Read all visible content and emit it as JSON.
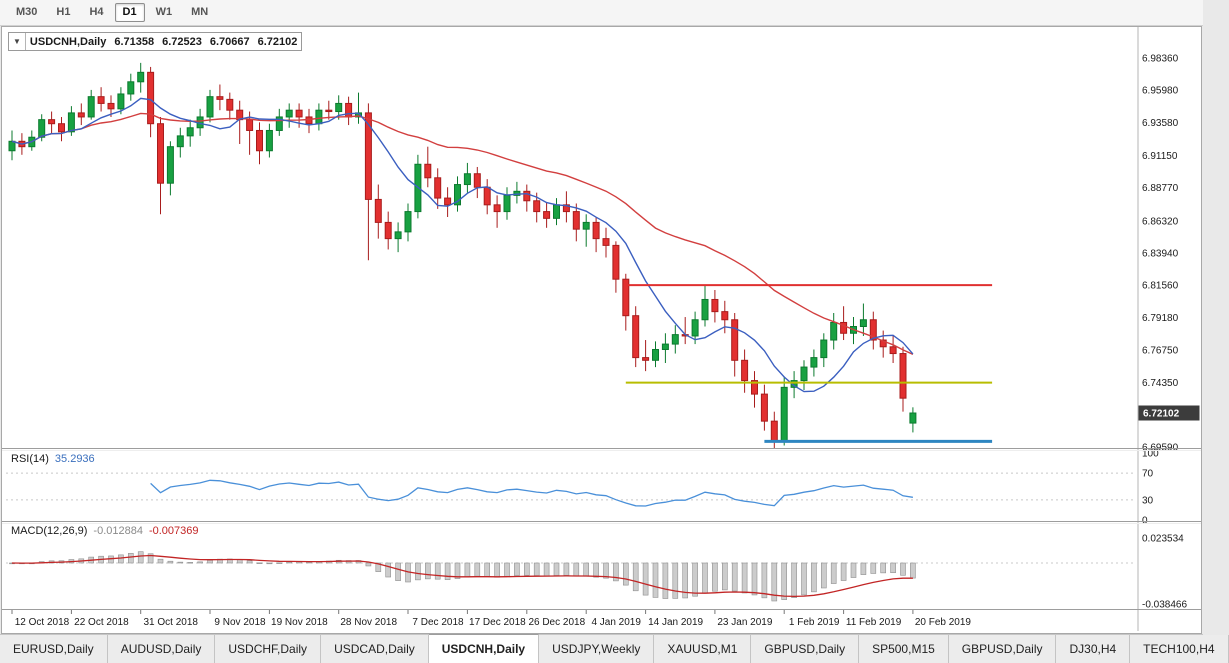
{
  "toolbar": {
    "timeframes": [
      {
        "label": "M30",
        "active": false
      },
      {
        "label": "H1",
        "active": false
      },
      {
        "label": "H4",
        "active": false
      },
      {
        "label": "D1",
        "active": true
      },
      {
        "label": "W1",
        "active": false
      },
      {
        "label": "MN",
        "active": false
      }
    ]
  },
  "chart": {
    "title": {
      "symbol": "USDCNH,Daily",
      "open": "6.71358",
      "high": "6.72523",
      "low": "6.70667",
      "close": "6.72102"
    },
    "current_price": "6.72102"
  },
  "chart_data": {
    "type": "candlestick",
    "title": "USDCNH,Daily",
    "symbol": "USDCNH",
    "timeframe": "Daily",
    "ylim": [
      6.685,
      6.998
    ],
    "y_axis_labels": [
      "6.98360",
      "6.95980",
      "6.93580",
      "6.91150",
      "6.88770",
      "6.86320",
      "6.83940",
      "6.81560",
      "6.79180",
      "6.76750",
      "6.74350",
      "6.69590"
    ],
    "x_ticks": [
      {
        "i": 0,
        "label": "12 Oct 2018"
      },
      {
        "i": 6,
        "label": "22 Oct 2018"
      },
      {
        "i": 13,
        "label": "31 Oct 2018"
      },
      {
        "i": 20,
        "label": "9 Nov 2018"
      },
      {
        "i": 26,
        "label": "19 Nov 2018"
      },
      {
        "i": 33,
        "label": "28 Nov 2018"
      },
      {
        "i": 40,
        "label": "7 Dec 2018"
      },
      {
        "i": 46,
        "label": "17 Dec 2018"
      },
      {
        "i": 52,
        "label": "26 Dec 2018"
      },
      {
        "i": 58,
        "label": "4 Jan 2019"
      },
      {
        "i": 64,
        "label": "14 Jan 2019"
      },
      {
        "i": 71,
        "label": "23 Jan 2019"
      },
      {
        "i": 78,
        "label": "1 Feb 2019"
      },
      {
        "i": 84,
        "label": "11 Feb 2019"
      },
      {
        "i": 91,
        "label": "20 Feb 2019"
      }
    ],
    "candles": [
      [
        6.915,
        6.93,
        6.908,
        6.922
      ],
      [
        6.922,
        6.928,
        6.912,
        6.918
      ],
      [
        6.918,
        6.93,
        6.915,
        6.925
      ],
      [
        6.925,
        6.942,
        6.922,
        6.938
      ],
      [
        6.938,
        6.944,
        6.928,
        6.935
      ],
      [
        6.935,
        6.94,
        6.922,
        6.929
      ],
      [
        6.929,
        6.948,
        6.926,
        6.943
      ],
      [
        6.943,
        6.95,
        6.934,
        6.94
      ],
      [
        6.94,
        6.96,
        6.938,
        6.955
      ],
      [
        6.955,
        6.962,
        6.944,
        6.95
      ],
      [
        6.95,
        6.956,
        6.94,
        6.946
      ],
      [
        6.946,
        6.962,
        6.942,
        6.957
      ],
      [
        6.957,
        6.972,
        6.952,
        6.966
      ],
      [
        6.966,
        6.98,
        6.958,
        6.973
      ],
      [
        6.973,
        6.977,
        6.925,
        6.935
      ],
      [
        6.935,
        6.94,
        6.868,
        6.891
      ],
      [
        6.891,
        6.922,
        6.882,
        6.918
      ],
      [
        6.918,
        6.932,
        6.91,
        6.926
      ],
      [
        6.926,
        6.938,
        6.918,
        6.932
      ],
      [
        6.932,
        6.946,
        6.926,
        6.94
      ],
      [
        6.94,
        6.96,
        6.936,
        6.955
      ],
      [
        6.955,
        6.964,
        6.945,
        6.953
      ],
      [
        6.953,
        6.958,
        6.938,
        6.945
      ],
      [
        6.945,
        6.952,
        6.92,
        6.938
      ],
      [
        6.938,
        6.944,
        6.912,
        6.93
      ],
      [
        6.93,
        6.936,
        6.905,
        6.915
      ],
      [
        6.915,
        6.935,
        6.91,
        6.93
      ],
      [
        6.93,
        6.946,
        6.926,
        6.94
      ],
      [
        6.94,
        6.95,
        6.932,
        6.945
      ],
      [
        6.945,
        6.95,
        6.932,
        6.94
      ],
      [
        6.94,
        6.946,
        6.928,
        6.935
      ],
      [
        6.935,
        6.95,
        6.93,
        6.945
      ],
      [
        6.945,
        6.952,
        6.938,
        6.944
      ],
      [
        6.944,
        6.956,
        6.938,
        6.95
      ],
      [
        6.95,
        6.955,
        6.934,
        6.94
      ],
      [
        6.94,
        6.958,
        6.935,
        6.943
      ],
      [
        6.943,
        6.95,
        6.834,
        6.879
      ],
      [
        6.879,
        6.89,
        6.85,
        6.862
      ],
      [
        6.862,
        6.87,
        6.842,
        6.85
      ],
      [
        6.85,
        6.862,
        6.84,
        6.855
      ],
      [
        6.855,
        6.876,
        6.848,
        6.87
      ],
      [
        6.87,
        6.912,
        6.865,
        6.905
      ],
      [
        6.905,
        6.918,
        6.888,
        6.895
      ],
      [
        6.895,
        6.902,
        6.872,
        6.88
      ],
      [
        6.88,
        6.888,
        6.866,
        6.875
      ],
      [
        6.875,
        6.896,
        6.87,
        6.89
      ],
      [
        6.89,
        6.906,
        6.884,
        6.898
      ],
      [
        6.898,
        6.903,
        6.88,
        6.888
      ],
      [
        6.888,
        6.894,
        6.868,
        6.875
      ],
      [
        6.875,
        6.882,
        6.858,
        6.87
      ],
      [
        6.87,
        6.888,
        6.864,
        6.882
      ],
      [
        6.882,
        6.892,
        6.876,
        6.885
      ],
      [
        6.885,
        6.89,
        6.87,
        6.878
      ],
      [
        6.878,
        6.884,
        6.862,
        6.87
      ],
      [
        6.87,
        6.877,
        6.858,
        6.865
      ],
      [
        6.865,
        6.88,
        6.86,
        6.875
      ],
      [
        6.875,
        6.885,
        6.862,
        6.87
      ],
      [
        6.87,
        6.876,
        6.848,
        6.857
      ],
      [
        6.857,
        6.868,
        6.844,
        6.862
      ],
      [
        6.862,
        6.866,
        6.84,
        6.85
      ],
      [
        6.85,
        6.858,
        6.836,
        6.845
      ],
      [
        6.845,
        6.848,
        6.81,
        6.82
      ],
      [
        6.82,
        6.824,
        6.782,
        6.793
      ],
      [
        6.793,
        6.8,
        6.755,
        6.762
      ],
      [
        6.762,
        6.775,
        6.752,
        6.76
      ],
      [
        6.76,
        6.774,
        6.755,
        6.768
      ],
      [
        6.768,
        6.78,
        6.758,
        6.772
      ],
      [
        6.772,
        6.786,
        6.765,
        6.779
      ],
      [
        6.779,
        6.792,
        6.772,
        6.778
      ],
      [
        6.778,
        6.796,
        6.772,
        6.79
      ],
      [
        6.79,
        6.815,
        6.785,
        6.805
      ],
      [
        6.805,
        6.812,
        6.788,
        6.796
      ],
      [
        6.796,
        6.804,
        6.78,
        6.79
      ],
      [
        6.79,
        6.795,
        6.748,
        6.76
      ],
      [
        6.76,
        6.768,
        6.736,
        6.745
      ],
      [
        6.745,
        6.752,
        6.725,
        6.735
      ],
      [
        6.735,
        6.742,
        6.708,
        6.715
      ],
      [
        6.715,
        6.722,
        6.695,
        6.7
      ],
      [
        6.7,
        6.748,
        6.697,
        6.74
      ],
      [
        6.74,
        6.752,
        6.732,
        6.745
      ],
      [
        6.745,
        6.76,
        6.738,
        6.755
      ],
      [
        6.755,
        6.768,
        6.748,
        6.762
      ],
      [
        6.762,
        6.78,
        6.755,
        6.775
      ],
      [
        6.775,
        6.795,
        6.768,
        6.788
      ],
      [
        6.788,
        6.8,
        6.775,
        6.78
      ],
      [
        6.78,
        6.792,
        6.772,
        6.785
      ],
      [
        6.785,
        6.802,
        6.778,
        6.79
      ],
      [
        6.79,
        6.796,
        6.768,
        6.775
      ],
      [
        6.775,
        6.782,
        6.762,
        6.77
      ],
      [
        6.77,
        6.778,
        6.758,
        6.765
      ],
      [
        6.765,
        6.77,
        6.722,
        6.732
      ],
      [
        6.71358,
        6.72523,
        6.70667,
        6.72102
      ]
    ],
    "style": {
      "candle_up_fill": "#18a142",
      "candle_up_stroke": "#0b7a2e",
      "candle_down_fill": "#e23030",
      "candle_down_stroke": "#a81c1c",
      "ma_fast_color": "#3b5fc0",
      "ma_slow_color": "#d23f3f",
      "badge_bg": "#3c3c3c",
      "badge_text": "#ffffff",
      "grid_color": "#c8c8c8",
      "axis_text_color": "#1a1a1a"
    },
    "overlays": {
      "ma_fast_period": 8,
      "ma_slow_period": 30,
      "hlines": [
        {
          "price": 6.8156,
          "from": 62,
          "to": 99,
          "color": "#e03030",
          "width": 2,
          "name": "resistance-line-red"
        },
        {
          "price": 6.7435,
          "from": 62,
          "to": 99,
          "color": "#b8bd00",
          "width": 2,
          "name": "support-line-yellow"
        },
        {
          "price": 6.7,
          "from": 76,
          "to": 99,
          "color": "#2e86c1",
          "width": 3,
          "name": "support-line-blue"
        }
      ]
    },
    "indicators": {
      "rsi": {
        "label": "RSI(14)",
        "value": "35.2936",
        "period": 14,
        "levels": [
          "100",
          "70",
          "30",
          "0"
        ],
        "dashed_levels": [
          70,
          30
        ],
        "color": "#4a90d9"
      },
      "macd": {
        "label": "MACD(12,26,9)",
        "value_main": "-0.012884",
        "value_signal": "-0.007369",
        "fast": 12,
        "slow": 26,
        "signal": 9,
        "axis_labels": [
          "0.023534",
          "-0.038466"
        ],
        "hist_fill": "#cccccc",
        "hist_stroke": "#8f8f8f",
        "signal_color": "#c22525"
      }
    },
    "legend_position": "none",
    "grid": false
  },
  "tabs": [
    {
      "label": "EURUSD,Daily",
      "active": false
    },
    {
      "label": "AUDUSD,Daily",
      "active": false
    },
    {
      "label": "USDCHF,Daily",
      "active": false
    },
    {
      "label": "USDCAD,Daily",
      "active": false
    },
    {
      "label": "USDCNH,Daily",
      "active": true
    },
    {
      "label": "USDJPY,Weekly",
      "active": false
    },
    {
      "label": "XAUUSD,M1",
      "active": false
    },
    {
      "label": "GBPUSD,Daily",
      "active": false
    },
    {
      "label": "SP500,M15",
      "active": false
    },
    {
      "label": "GBPUSD,Daily",
      "active": false
    },
    {
      "label": "DJ30,H4",
      "active": false
    },
    {
      "label": "TECH100,H4",
      "active": false
    }
  ]
}
